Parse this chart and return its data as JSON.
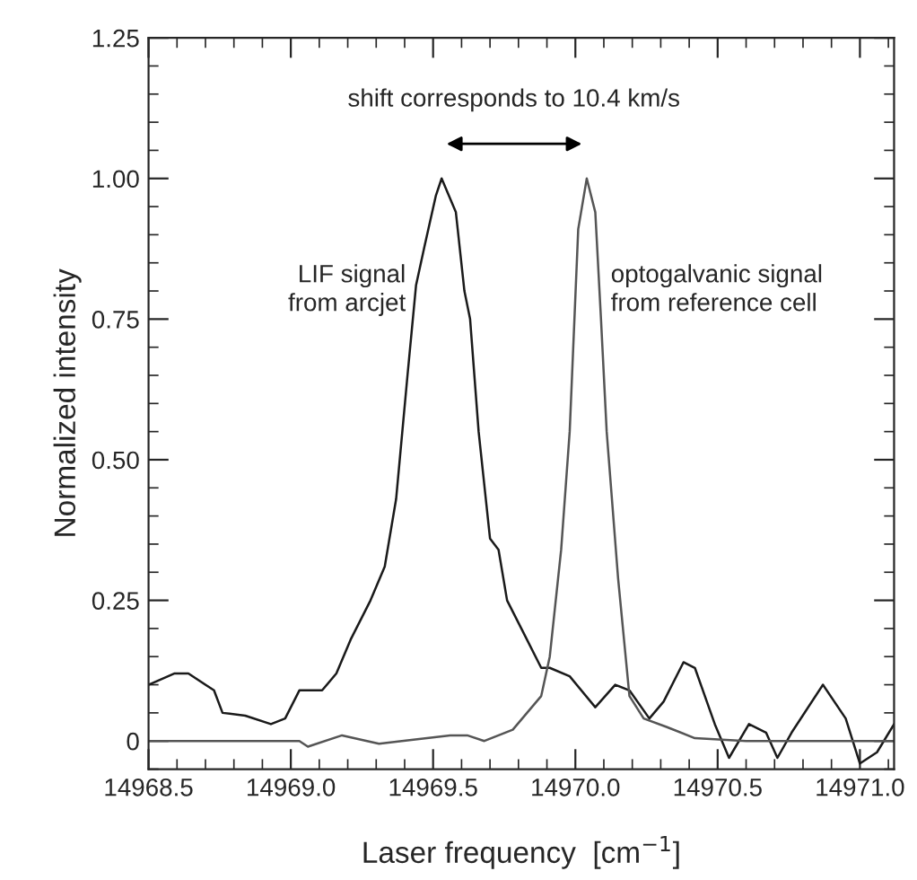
{
  "chart_data": {
    "type": "line",
    "xlabel": "Laser frequency  [cm$^{−1}$]",
    "ylabel": "Normalized intensity",
    "xlim": [
      14968.5,
      14971.12
    ],
    "ylim": [
      -0.05,
      1.25
    ],
    "xticks": [
      {
        "value": 14968.5,
        "label": "14968.5"
      },
      {
        "value": 14969.0,
        "label": "14969.0"
      },
      {
        "value": 14969.5,
        "label": "14969.5"
      },
      {
        "value": 14970.0,
        "label": "14970.0"
      },
      {
        "value": 14970.5,
        "label": "14970.5"
      },
      {
        "value": 14971.0,
        "label": "14971.0"
      }
    ],
    "yticks": [
      0,
      {
        "value": 0.25,
        "label": "0.25"
      },
      {
        "value": 0.5,
        "label": "0.50"
      },
      {
        "value": 0.75,
        "label": "0.75"
      },
      {
        "value": 1.0,
        "label": "1.00"
      },
      {
        "value": 1.25,
        "label": "1.25"
      }
    ],
    "grid": false,
    "marker": "none",
    "line_style": "solid",
    "series": [
      {
        "color": "#1a1a1a",
        "x": [
          14968.5,
          14968.59,
          14968.64,
          14968.73,
          14968.76,
          14968.84,
          14968.93,
          14968.98,
          14969.03,
          14969.11,
          14969.16,
          14969.21,
          14969.28,
          14969.33,
          14969.37,
          14969.39,
          14969.41,
          14969.44,
          14969.47,
          14969.51,
          14969.53,
          14969.58,
          14969.61,
          14969.63,
          14969.66,
          14969.7,
          14969.73,
          14969.76,
          14969.81,
          14969.88,
          14969.91,
          14969.98,
          14970.07,
          14970.14,
          14970.19,
          14970.26,
          14970.31,
          14970.38,
          14970.42,
          14970.49,
          14970.54,
          14970.61,
          14970.67,
          14970.71,
          14970.76,
          14970.87,
          14970.95,
          14971.0,
          14971.06,
          14971.12
        ],
        "values": [
          0.1,
          0.12,
          0.12,
          0.09,
          0.05,
          0.045,
          0.03,
          0.04,
          0.09,
          0.09,
          0.12,
          0.18,
          0.25,
          0.31,
          0.43,
          0.54,
          0.65,
          0.81,
          0.88,
          0.97,
          1.0,
          0.94,
          0.8,
          0.75,
          0.55,
          0.36,
          0.34,
          0.25,
          0.2,
          0.13,
          0.13,
          0.115,
          0.06,
          0.1,
          0.09,
          0.04,
          0.07,
          0.14,
          0.13,
          0.03,
          -0.03,
          0.03,
          0.015,
          -0.03,
          0.015,
          0.1,
          0.04,
          -0.04,
          -0.02,
          0.03
        ]
      },
      {
        "color": "#555555",
        "x": [
          14968.5,
          14969.03,
          14969.06,
          14969.18,
          14969.31,
          14969.39,
          14969.56,
          14969.62,
          14969.68,
          14969.78,
          14969.83,
          14969.88,
          14969.91,
          14969.95,
          14969.98,
          14970.01,
          14970.04,
          14970.07,
          14970.09,
          14970.11,
          14970.15,
          14970.19,
          14970.24,
          14970.32,
          14970.42,
          14970.6,
          14970.8,
          14971.0,
          14971.12
        ],
        "values": [
          0,
          0,
          -0.01,
          0.01,
          -0.005,
          0,
          0.01,
          0.01,
          0,
          0.02,
          0.05,
          0.08,
          0.15,
          0.34,
          0.55,
          0.91,
          1.0,
          0.94,
          0.75,
          0.55,
          0.29,
          0.08,
          0.04,
          0.025,
          0.005,
          0,
          0,
          0,
          0
        ]
      }
    ],
    "annotations": [
      "shift corresponds to 10.4 km/s",
      "LIF signal\nfrom arcjet",
      "optogalvanic signal\nfrom reference cell"
    ]
  }
}
